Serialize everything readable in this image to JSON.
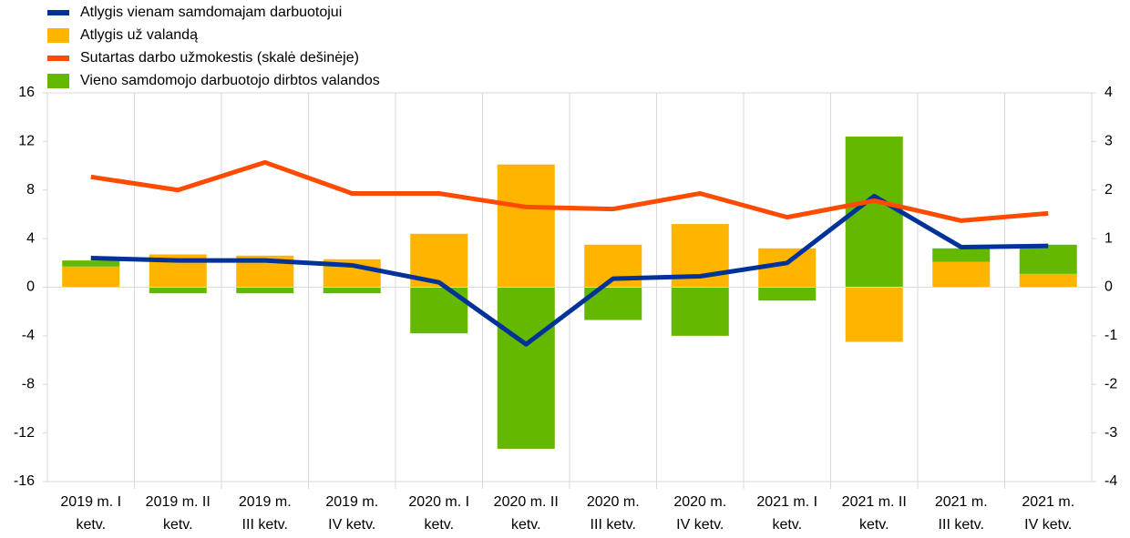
{
  "chart_data": {
    "type": "bar",
    "categories": [
      [
        "2019 m. I",
        "ketv."
      ],
      [
        "2019 m. II",
        "ketv."
      ],
      [
        "2019 m.",
        "III ketv."
      ],
      [
        "2019 m.",
        "IV ketv."
      ],
      [
        "2020 m. I",
        "ketv."
      ],
      [
        "2020 m. II",
        "ketv."
      ],
      [
        "2020 m.",
        "III ketv."
      ],
      [
        "2020 m.",
        "IV ketv."
      ],
      [
        "2021 m. I",
        "ketv."
      ],
      [
        "2021 m. II",
        "ketv."
      ],
      [
        "2021 m.",
        "III ketv."
      ],
      [
        "2021 m.",
        "IV ketv."
      ]
    ],
    "series": [
      {
        "name": "Atlygis vienam samdomajam darbuotojui",
        "type": "line",
        "color": "#003299",
        "values": [
          2.4,
          2.2,
          2.2,
          1.8,
          0.4,
          -4.7,
          0.7,
          0.9,
          2.0,
          7.5,
          3.3,
          3.4
        ]
      },
      {
        "name": "Atlygis už valandą",
        "type": "bar",
        "color": "#FFB400",
        "values": [
          1.7,
          2.7,
          2.6,
          2.3,
          4.4,
          10.1,
          3.5,
          5.2,
          3.2,
          -4.5,
          2.1,
          1.1
        ]
      },
      {
        "name": "Sutartas darbo užmokestis (skalė dešinėje)",
        "type": "line",
        "axis": "y2",
        "color": "#FF4B00",
        "values": [
          2.27,
          2.0,
          2.57,
          1.93,
          1.93,
          1.65,
          1.61,
          1.93,
          1.44,
          1.78,
          1.37,
          1.52
        ]
      },
      {
        "name": "Vieno samdomojo darbuotojo dirbtos valandos",
        "type": "bar",
        "color": "#65B800",
        "values": [
          0.5,
          -0.5,
          -0.5,
          -0.5,
          -3.8,
          -13.3,
          -2.7,
          -4.0,
          -1.1,
          12.4,
          1.1,
          2.4
        ]
      }
    ],
    "ylim": [
      -16,
      16
    ],
    "yticks": [
      -16,
      -12,
      -8,
      -4,
      0,
      4,
      8,
      12,
      16
    ],
    "y2lim": [
      -4,
      4
    ],
    "y2ticks": [
      -4,
      -3,
      -2,
      -1,
      0,
      1,
      2,
      3,
      4
    ]
  }
}
